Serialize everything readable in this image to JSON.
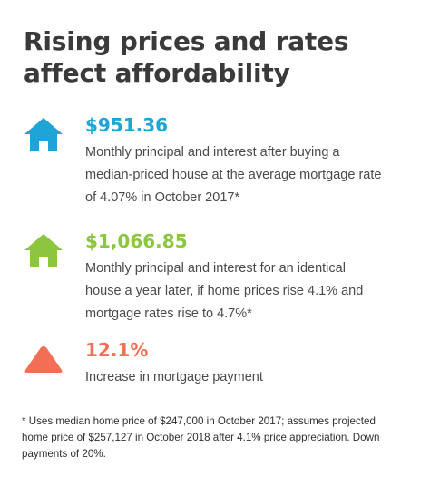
{
  "title_line1": "Rising prices and rates",
  "title_line2": "affect affordability",
  "stats": [
    {
      "icon": "house-icon",
      "color": "#1ea5d6",
      "value": "$951.36",
      "desc_lines": [
        "Monthly principal and interest after buying a",
        "median-priced house at the average mortgage rate",
        "of 4.07% in October 2017*"
      ]
    },
    {
      "icon": "house-icon",
      "color": "#8cc63f",
      "value": "$1,066.85",
      "desc_lines": [
        "Monthly principal and interest for an identical",
        "house a year later, if home prices rise 4.1% and",
        "mortgage rates rise to 4.7%*"
      ]
    },
    {
      "icon": "triangle-up-icon",
      "color": "#f26f55",
      "value": "12.1%",
      "desc_lines": [
        "Increase in mortgage payment"
      ]
    }
  ],
  "footnote_lines": [
    "* Uses median home price of $247,000 in October 2017; assumes projected",
    "home price of $257,127 in October 2018 after 4.1% price appreciation. Down",
    "payments of 20%."
  ]
}
